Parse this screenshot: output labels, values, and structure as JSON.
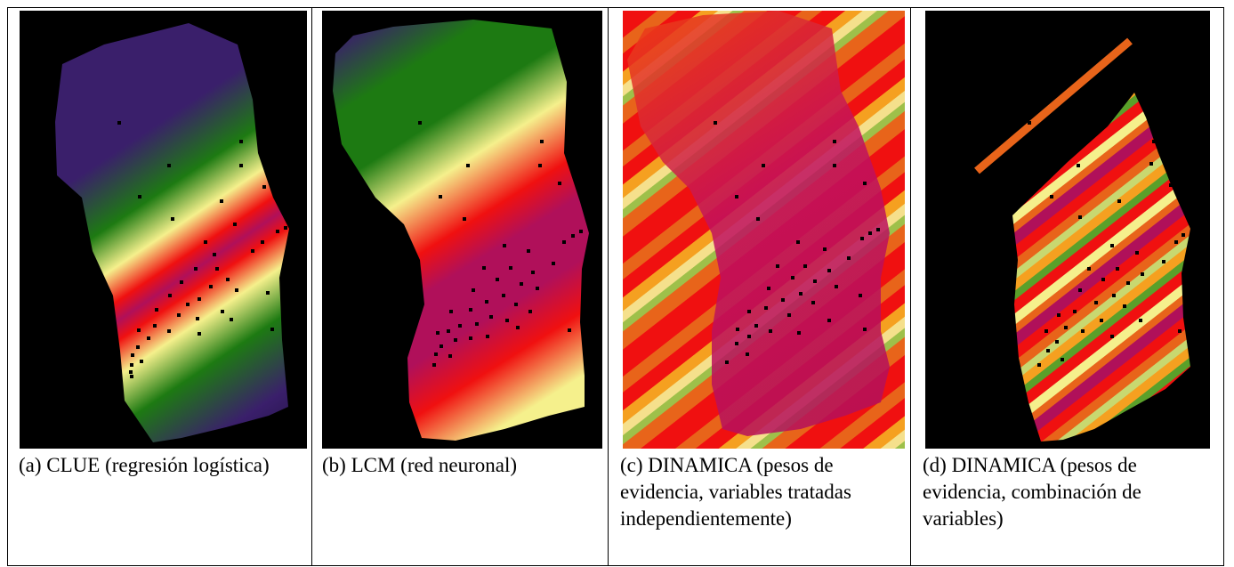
{
  "figures": [
    {
      "id": "a",
      "caption": "(a) CLUE (regresión logística)",
      "method": "CLUE",
      "model": "regresión logística"
    },
    {
      "id": "b",
      "caption": "(b) LCM (red neuronal)",
      "method": "LCM",
      "model": "red neuronal"
    },
    {
      "id": "c",
      "caption": "(c) DINAMICA (pesos de evidencia, variables tratadas independientemente)",
      "method": "DINAMICA",
      "model": "pesos de evidencia, variables tratadas independientemente"
    },
    {
      "id": "d",
      "caption": "(d) DINAMICA (pesos de evidencia, combinación de variables)",
      "method": "DINAMICA",
      "model": "pesos de evidencia, combinación de variables"
    }
  ],
  "colors": {
    "background": "#000000",
    "purple": "#3a1f6b",
    "green": "#1d7a12",
    "yellow": "#f5f08c",
    "red": "#f01010",
    "magenta": "#b0105a",
    "orange": "#e8641a"
  }
}
